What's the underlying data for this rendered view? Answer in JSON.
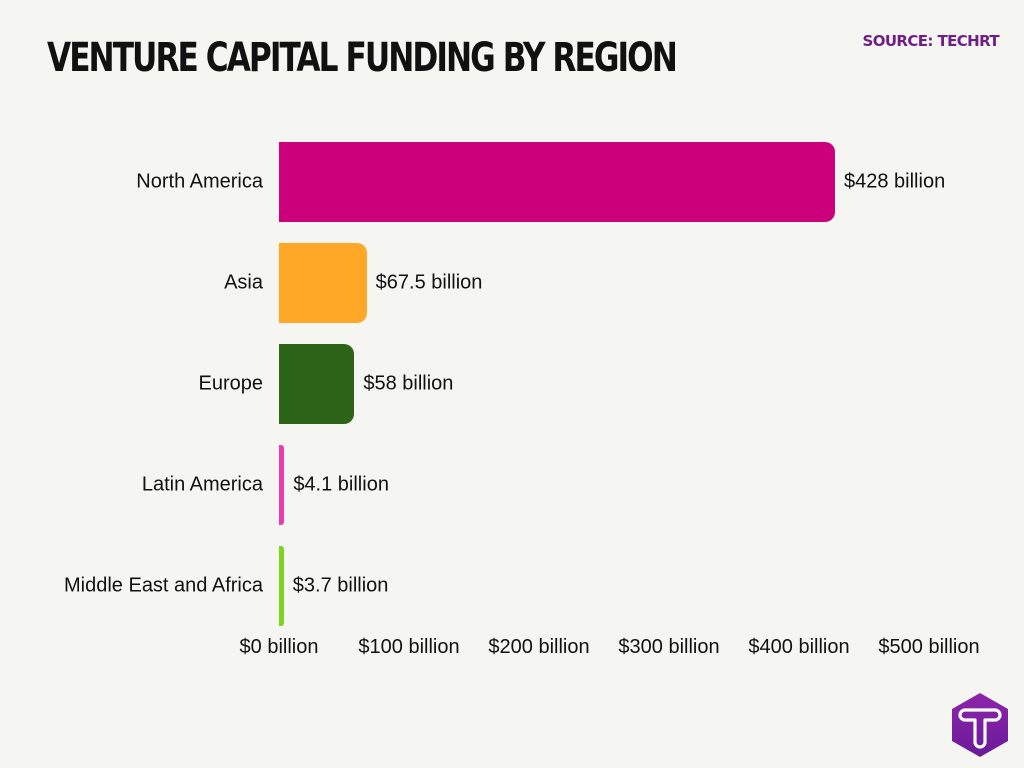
{
  "header": {
    "title": "VENTURE CAPITAL FUNDING BY REGION",
    "source": "SOURCE: TECHRT"
  },
  "chart_data": {
    "type": "bar",
    "orientation": "horizontal",
    "title": "VENTURE CAPITAL FUNDING BY REGION",
    "xlabel": "",
    "ylabel": "",
    "categories": [
      "North America",
      "Asia",
      "Europe",
      "Latin America",
      "Middle East and Africa"
    ],
    "values": [
      428,
      67.5,
      58,
      4.1,
      3.7
    ],
    "unit": "billion USD",
    "value_labels": [
      "$428 billion",
      "$67.5 billion",
      "$58 billion",
      "$4.1 billion",
      "$3.7 billion"
    ],
    "colors": [
      "#cc007a",
      "#ffa726",
      "#2e6417",
      "#e83cb0",
      "#7ed321"
    ],
    "xlim": [
      0,
      500
    ],
    "x_ticks": [
      0,
      100,
      200,
      300,
      400,
      500
    ],
    "x_tick_labels": [
      "$0 billion",
      "$100 billion",
      "$200 billion",
      "$300 billion",
      "$400 billion",
      "$500 billion"
    ],
    "grid": false,
    "legend": "none"
  },
  "logo": {
    "icon": "techrt-hexagon-t-logo",
    "color": "#7b1fa2"
  }
}
